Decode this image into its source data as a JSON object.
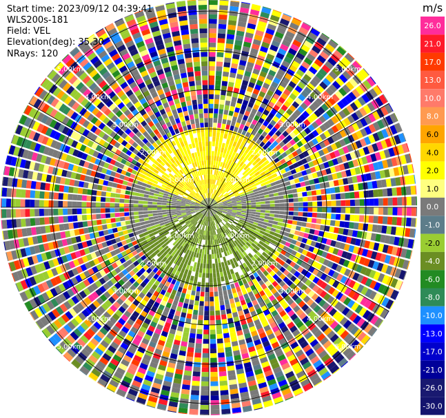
{
  "header": {
    "start_time": "Start time: 2023/09/12 04:39:41",
    "instrument": "WLS200s-181",
    "field": "Field: VEL",
    "elevation": "Elevation(deg): 35.30",
    "nrays": "NRays: 120"
  },
  "chart_data": {
    "type": "heatmap",
    "subtype": "ppi-polar",
    "field": "VEL",
    "nrays": 120,
    "range_rings_km": [
      1.0,
      2.0,
      3.0,
      4.0,
      5.0
    ],
    "max_range_km": 5.3,
    "range_labels": [
      "1.00km",
      "2.00km",
      "3.00km",
      "4.00km",
      "5.00km"
    ],
    "spoke_angles_deg": [
      0,
      30,
      60,
      90,
      120,
      150,
      180,
      210,
      240,
      270,
      300,
      330
    ],
    "colorbar": {
      "unit": "m/s",
      "ticks": [
        "26.0",
        "21.0",
        "17.0",
        "13.0",
        "10.0",
        "8.0",
        "6.0",
        "4.0",
        "2.0",
        "1.0",
        "0.0",
        "-1.0",
        "-2.0",
        "-4.0",
        "-6.0",
        "-8.0",
        "-10.0",
        "-13.0",
        "-17.0",
        "-21.0",
        "-26.0",
        "-30.0"
      ],
      "colors": [
        "#ff2d9b",
        "#ff1a2a",
        "#ff3a00",
        "#ff5a40",
        "#ff7a6a",
        "#ff9a50",
        "#ffa500",
        "#ffd700",
        "#ffff00",
        "#ffff80",
        "#7a7a7a",
        "#5d7d8a",
        "#9acd32",
        "#6b8e23",
        "#228b22",
        "#2e8b57",
        "#1e90ff",
        "#0000ff",
        "#0000cc",
        "#000099",
        "#191970",
        "#14146e"
      ]
    },
    "features": {
      "near_positive_bearing_deg": [
        290,
        70
      ],
      "near_positive_radius_km": [
        0.0,
        2.1
      ],
      "near_negative_bearing_deg": [
        110,
        250
      ],
      "near_negative_radius_km": [
        0.0,
        2.1
      ],
      "noise_start_km": 2.1
    }
  }
}
